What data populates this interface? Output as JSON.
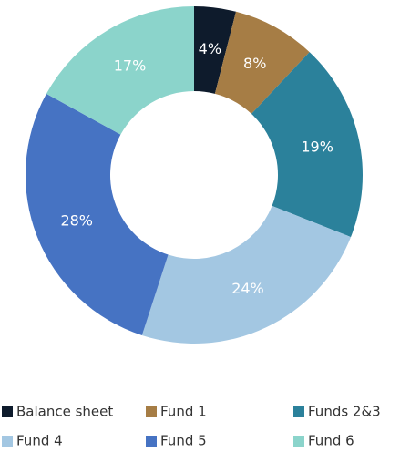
{
  "chart_data": {
    "type": "donut",
    "categories": [
      "Balance sheet",
      "Fund 1",
      "Funds 2&3",
      "Fund 4",
      "Fund 5",
      "Fund 6"
    ],
    "values": [
      4,
      8,
      19,
      24,
      28,
      17
    ],
    "value_labels": [
      "4%",
      "8%",
      "19%",
      "24%",
      "28%",
      "17%"
    ],
    "colors": [
      "#0e1b2c",
      "#a67d45",
      "#2b819b",
      "#a3c7e2",
      "#4673c3",
      "#8bd4cb"
    ]
  }
}
